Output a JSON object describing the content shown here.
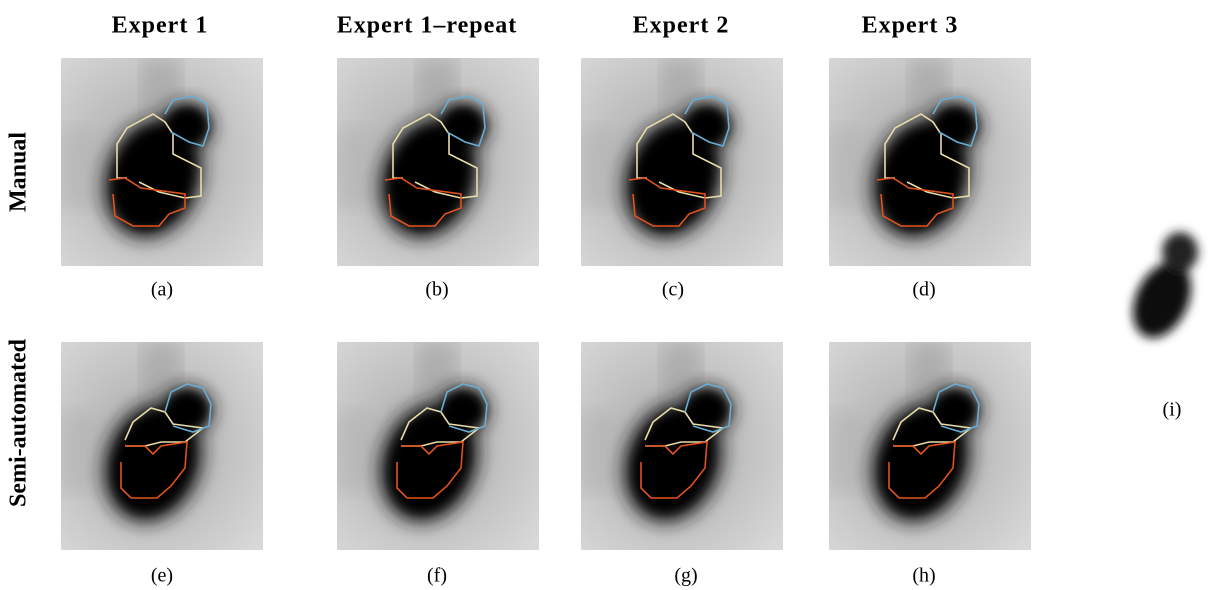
{
  "columns": [
    "Expert 1",
    "Expert 1–repeat",
    "Expert 2",
    "Expert 3"
  ],
  "rows": [
    "Manual",
    "Semi-automated"
  ],
  "captions": [
    "(a)",
    "(b)",
    "(c)",
    "(d)",
    "(e)",
    "(f)",
    "(g)",
    "(h)",
    "(i)"
  ]
}
